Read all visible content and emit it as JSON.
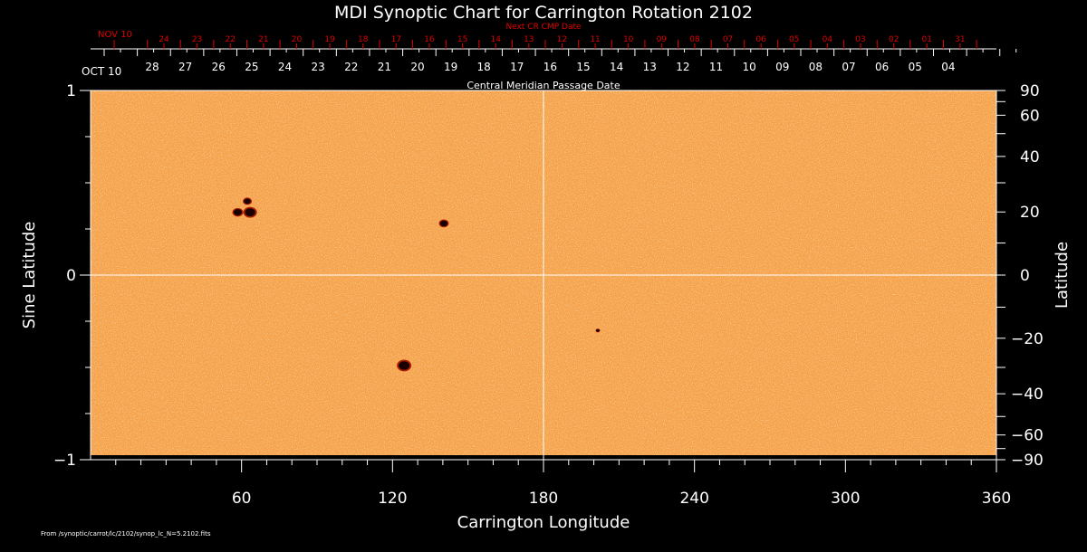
{
  "chart_data": {
    "type": "heatmap",
    "title": "MDI Synoptic Chart for Carrington Rotation 2102",
    "xlabel": "Carrington Longitude",
    "ylabel": "Sine Latitude",
    "y2label": "Latitude",
    "xlim": [
      0,
      360
    ],
    "ylim": [
      -1,
      1
    ],
    "xticks": [
      60,
      120,
      180,
      240,
      300,
      360
    ],
    "xtick_labels": [
      "60",
      "120",
      "180",
      "240",
      "300",
      "360"
    ],
    "yticks": [
      -1,
      0,
      1
    ],
    "ytick_labels": [
      "−1",
      "0",
      "1"
    ],
    "y2ticks": [
      90,
      60,
      40,
      20,
      0,
      -20,
      -40,
      -60,
      -90
    ],
    "y2tick_labels": [
      "90",
      "60",
      "40",
      "20",
      "0",
      "−20",
      "−40",
      "−60",
      "−90"
    ],
    "top_axis": {
      "label": "Central Meridian Passage Date",
      "start_label": "OCT 10",
      "dates": [
        "28",
        "27",
        "26",
        "25",
        "24",
        "23",
        "22",
        "21",
        "20",
        "19",
        "18",
        "17",
        "16",
        "15",
        "14",
        "13",
        "12",
        "11",
        "10",
        "09",
        "08",
        "07",
        "06",
        "05",
        "04"
      ]
    },
    "top_axis_next": {
      "label": "Next CR CMP Date",
      "start_label": "NOV 10",
      "dates": [
        "24",
        "23",
        "22",
        "21",
        "20",
        "19",
        "18",
        "17",
        "16",
        "15",
        "14",
        "13",
        "12",
        "11",
        "10",
        "09",
        "08",
        "07",
        "06",
        "05",
        "04",
        "03",
        "02",
        "01",
        "31"
      ]
    },
    "features": [
      {
        "lon": 62.3,
        "sinlat": 0.4,
        "size": 1.0
      },
      {
        "lon": 63.4,
        "sinlat": 0.34,
        "size": 1.5
      },
      {
        "lon": 58.5,
        "sinlat": 0.34,
        "size": 1.2
      },
      {
        "lon": 140.4,
        "sinlat": 0.28,
        "size": 1.1
      },
      {
        "lon": 124.6,
        "sinlat": -0.49,
        "size": 1.6
      },
      {
        "lon": 201.6,
        "sinlat": -0.3,
        "size": 0.5
      }
    ],
    "colors": {
      "background": "#f5a450",
      "spot": "#1a0000",
      "next_axis": "#e00000",
      "axis": "#ffffff"
    }
  },
  "footer": "From /synoptic/carrot/lc/2102/synop_lc_N=5.2102.fits"
}
